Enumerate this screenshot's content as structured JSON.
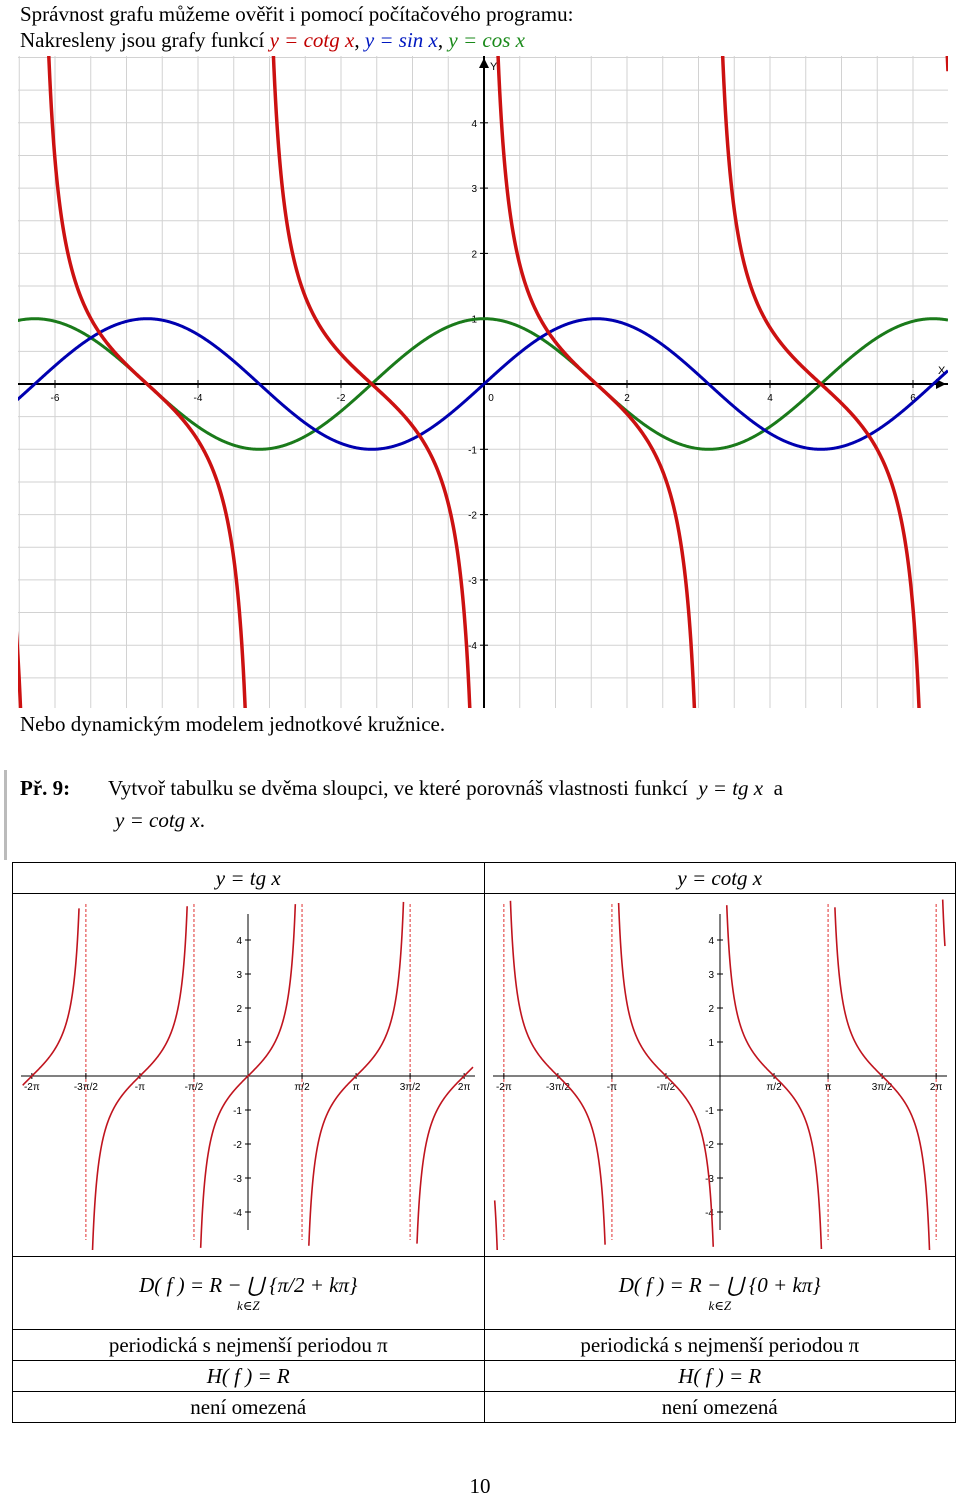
{
  "intro": {
    "line1": "Správnost grafu můžeme ověřit i pomocí počítačového programu:",
    "line2_prefix": "Nakresleny jsou grafy funkcí",
    "f1": "y = cotg x",
    "f2": "y = sin x",
    "f3": "y = cos x",
    "sep": ","
  },
  "main_chart_labels": {
    "x_axis": "X",
    "y_axis": "Y"
  },
  "after_text": "Nebo dynamickým modelem jednotkové kružnice.",
  "example": {
    "label": "Př. 9:",
    "text": "Vytvoř tabulku se dvěma sloupci, ve které porovnáš vlastnosti funkcí",
    "f1": "y = tg x",
    "conj": "a",
    "f2": "y = cotg x",
    "end": "."
  },
  "table": {
    "col1": {
      "header": "y = tg x",
      "domain": "D( f ) = R − ⋃ {π/2 + kπ}",
      "domain_sub": "k∈Z",
      "period": "periodická s nejmenší periodou π",
      "range": "H( f ) = R",
      "bounded": "není omezená"
    },
    "col2": {
      "header": "y = cotg x",
      "domain": "D( f ) = R − ⋃ {0 + kπ}",
      "domain_sub": "k∈Z",
      "period": "periodická s nejmenší periodou π",
      "range": "H( f ) = R",
      "bounded": "není omezená"
    }
  },
  "page_number": "10",
  "colors": {
    "cotg": "#cc1111",
    "sin": "#0000b0",
    "cos": "#1a7a1a",
    "tg_small": "#c0141e"
  },
  "chart_data": [
    {
      "type": "line",
      "title": "",
      "xlabel": "X",
      "ylabel": "Y",
      "xlim": [
        -6.7,
        6.5
      ],
      "ylim": [
        -5,
        5
      ],
      "xticks": [
        -6,
        -4,
        -2,
        0,
        2,
        4,
        6
      ],
      "yticks": [
        -4,
        -3,
        -2,
        -1,
        1,
        2,
        3,
        4
      ],
      "grid": true,
      "series": [
        {
          "function": "cotg",
          "x": [
            -6.5,
            -5.5,
            -4.7,
            -3.5,
            -2.5,
            -1.6,
            -0.5,
            0.5,
            1.6,
            2.5,
            3.5,
            4.7,
            5.5,
            6.2
          ],
          "values": [
            -4.6,
            1.42,
            -0.01,
            -2.67,
            1.34,
            -0.03,
            -1.83,
            1.83,
            -0.03,
            -1.34,
            2.67,
            0.01,
            -1.42,
            -12.0
          ]
        },
        {
          "function": "sin",
          "x": [
            -6.5,
            -4.71,
            -3.14,
            -1.57,
            0,
            1.57,
            3.14,
            4.71,
            6.28
          ],
          "values": [
            -0.22,
            1,
            0,
            -1,
            0,
            1,
            0,
            -1,
            0
          ]
        },
        {
          "function": "cos",
          "x": [
            -6.5,
            -4.71,
            -3.14,
            -1.57,
            0,
            1.57,
            3.14,
            4.71,
            6.28
          ],
          "values": [
            0.98,
            0,
            -1,
            0,
            1,
            0,
            -1,
            0,
            1
          ]
        }
      ]
    },
    {
      "type": "line",
      "title": "y = tg x",
      "xticks": [
        "-2π",
        "-3π/2",
        "-π",
        "-π/2",
        "π/2",
        "π",
        "3π/2",
        "2π"
      ],
      "yticks": [
        -4,
        -3,
        -2,
        -1,
        1,
        2,
        3,
        4
      ],
      "asymptotes": [
        "-3π/2",
        "-π/2",
        "π/2",
        "3π/2"
      ],
      "series": [
        {
          "function": "tg"
        }
      ]
    },
    {
      "type": "line",
      "title": "y = cotg x",
      "xticks": [
        "-2π",
        "-3π/2",
        "-π",
        "-π/2",
        "π/2",
        "π",
        "3π/2",
        "2π"
      ],
      "yticks": [
        -4,
        -3,
        -2,
        -1,
        1,
        2,
        3,
        4
      ],
      "asymptotes": [
        "-2π",
        "-π",
        "0",
        "π",
        "2π"
      ],
      "series": [
        {
          "function": "cotg"
        }
      ]
    }
  ]
}
